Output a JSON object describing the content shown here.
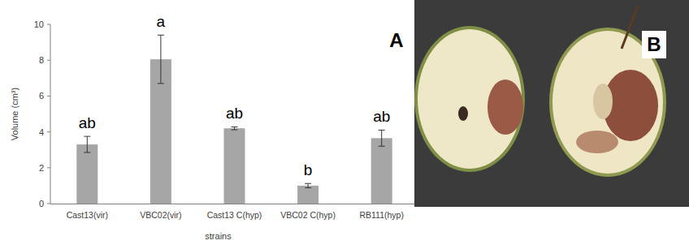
{
  "chart_data": {
    "type": "bar",
    "title": "A",
    "categories": [
      "Cast13(vir)",
      "VBC02(vir)",
      "Cast13 C(hyp)",
      "VBC02 C(hyp)",
      "RB111(hyp)"
    ],
    "values": [
      3.3,
      8.05,
      4.2,
      1.0,
      3.65
    ],
    "errors": [
      0.45,
      1.35,
      0.08,
      0.12,
      0.45
    ],
    "annotations": [
      "ab",
      "a",
      "ab",
      "b",
      "ab"
    ],
    "color": "#a6a6a6",
    "x_label": "strains",
    "y_label": "Volume (cm³)",
    "ylim": [
      0,
      10
    ],
    "yticks": [
      0,
      2,
      4,
      6,
      8,
      10
    ],
    "grid": false
  },
  "image": {
    "label": "B"
  }
}
